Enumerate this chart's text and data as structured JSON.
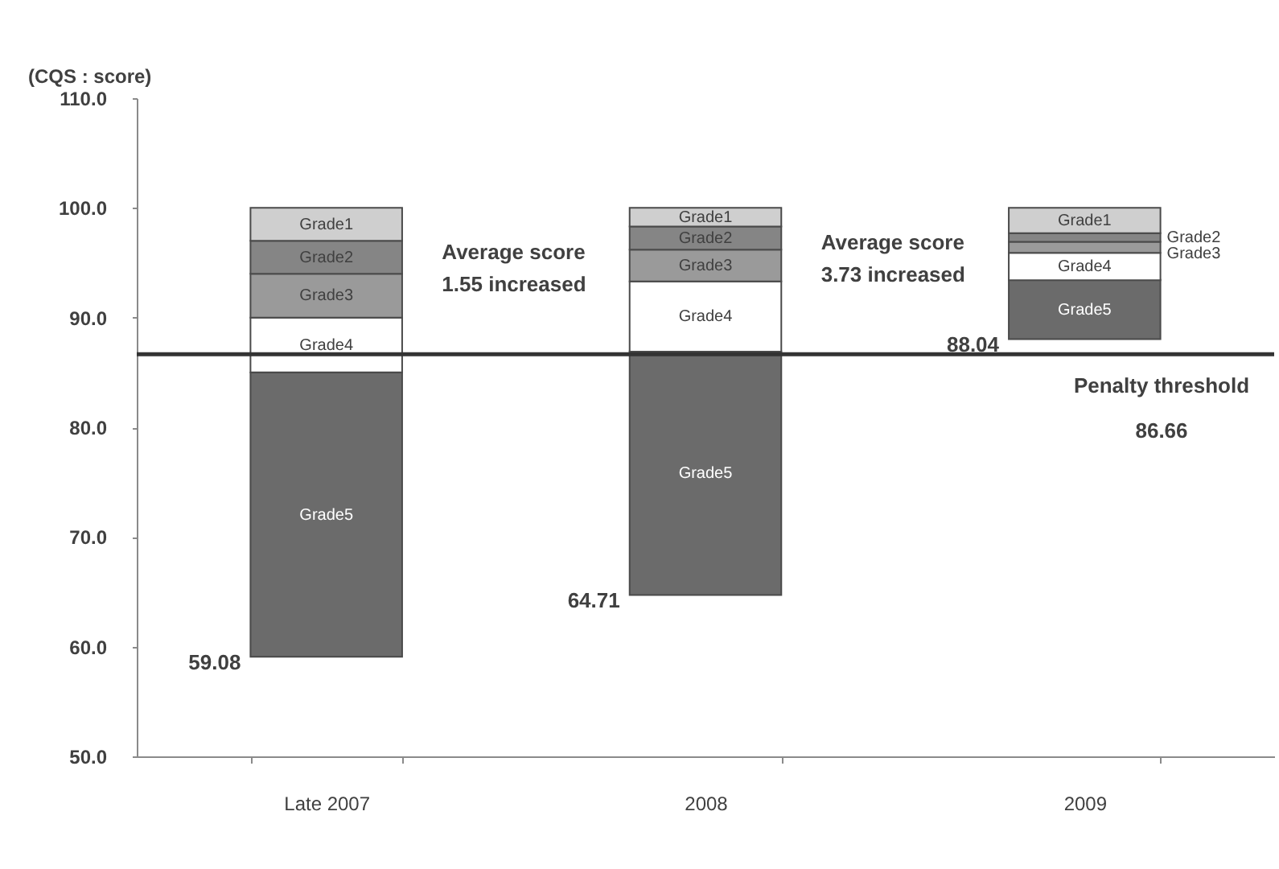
{
  "chart_data": {
    "type": "bar",
    "ylabel": "(CQS : score)",
    "categories": [
      "Late 2007",
      "2008",
      "2009"
    ],
    "series": [
      {
        "name": "Grade5",
        "color": "#6b6b6b",
        "base": [
          59.08,
          64.71,
          88.04
        ],
        "values": [
          25.9,
          22.2,
          5.4
        ]
      },
      {
        "name": "Grade4",
        "color": "#ffffff",
        "base": [
          85.0,
          86.9,
          93.4
        ],
        "values": [
          5.0,
          6.4,
          2.5
        ]
      },
      {
        "name": "Grade3",
        "color": "#9a9a9a",
        "base": [
          90.0,
          93.3,
          95.9
        ],
        "values": [
          4.0,
          2.9,
          1.0
        ]
      },
      {
        "name": "Grade2",
        "color": "#858585",
        "base": [
          94.0,
          96.2,
          96.9
        ],
        "values": [
          3.0,
          2.1,
          0.8
        ]
      },
      {
        "name": "Grade1",
        "color": "#cfcfcf",
        "base": [
          97.0,
          98.3,
          97.7
        ],
        "values": [
          3.0,
          1.7,
          2.3
        ]
      }
    ],
    "ylim": [
      50,
      110
    ],
    "yticks": [
      {
        "value": 50,
        "label": "50.0"
      },
      {
        "value": 60,
        "label": "60.0"
      },
      {
        "value": 70,
        "label": "70.0"
      },
      {
        "value": 80,
        "label": "80.0"
      },
      {
        "value": 90,
        "label": "90.0"
      },
      {
        "value": 100,
        "label": "100.0"
      },
      {
        "value": 110,
        "label": "110.0"
      }
    ],
    "ref_lines": [
      {
        "axis": "y",
        "value": 86.66,
        "label": "Penalty threshold\n86.66",
        "color": "#333333"
      }
    ],
    "annotations": [
      "Average score\n1.55 increased",
      "Average score\n3.73 increased",
      "59.08",
      "64.71",
      "88.04"
    ],
    "legend": false
  }
}
